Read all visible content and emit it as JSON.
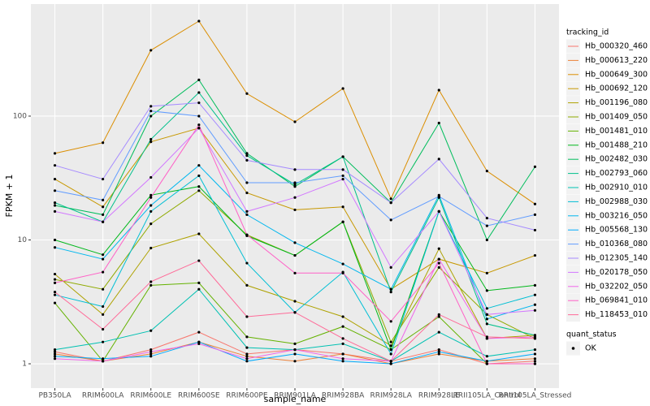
{
  "chart_data": {
    "type": "line",
    "x_label": "sample_name",
    "y_label": "FPKM + 1",
    "log_scale": true,
    "grid": true,
    "ylim": [
      0.636,
      803
    ],
    "yticks": [
      1,
      10,
      100
    ],
    "legend_title": "tracking_id",
    "point_legend": {
      "title": "quant_status",
      "labels": [
        "OK"
      ],
      "color": "#000000"
    },
    "categories": [
      "PB350LA",
      "RRIM600LA",
      "RRIM600LE",
      "RRIM600SE",
      "RRIM600PE",
      "RRIM901LA",
      "RRIM928BA",
      "RRIM928LA",
      "RRIM928LE",
      "RRII105LA_Control",
      "RRII105LA_Stressed"
    ],
    "series": [
      {
        "name": "Hb_000320_460",
        "color": "#F8766D",
        "values": [
          1.25,
          1.05,
          1.3,
          1.8,
          1.2,
          1.3,
          1.2,
          1.05,
          1.3,
          1.0,
          1.05
        ]
      },
      {
        "name": "Hb_000613_220",
        "color": "#EC8239",
        "values": [
          1.2,
          1.05,
          1.2,
          1.5,
          1.15,
          1.05,
          1.2,
          1.0,
          1.2,
          1.05,
          1.1
        ]
      },
      {
        "name": "Hb_000649_300",
        "color": "#DB8E00",
        "values": [
          50,
          61,
          340,
          585,
          152,
          90,
          167,
          21.5,
          162,
          36,
          19.5
        ]
      },
      {
        "name": "Hb_000692_120",
        "color": "#C79800",
        "values": [
          31,
          18.5,
          62,
          80,
          24,
          17.5,
          18.5,
          4,
          7,
          5.4,
          7.5
        ]
      },
      {
        "name": "Hb_001196_080",
        "color": "#AEA200",
        "values": [
          5.3,
          2.5,
          8.6,
          11.2,
          4.3,
          3.2,
          2.4,
          1.4,
          8.5,
          1.6,
          1.7
        ]
      },
      {
        "name": "Hb_001409_050",
        "color": "#8FAA00",
        "values": [
          4.8,
          4.0,
          13.5,
          25,
          11,
          7.5,
          14,
          1.5,
          6,
          2.5,
          1.6
        ]
      },
      {
        "name": "Hb_001481_010",
        "color": "#64B200",
        "values": [
          3.1,
          1.05,
          4.3,
          4.5,
          1.65,
          1.45,
          2.0,
          1.3,
          2.4,
          1.0,
          1.0
        ]
      },
      {
        "name": "Hb_001488_210",
        "color": "#00B81B",
        "values": [
          10,
          7.6,
          23,
          27,
          10.8,
          7.5,
          14,
          1.3,
          17,
          3.9,
          4.3
        ]
      },
      {
        "name": "Hb_002482_030",
        "color": "#00BD5C",
        "values": [
          19,
          16,
          100,
          196,
          50,
          27,
          47,
          20,
          88,
          10,
          39
        ]
      },
      {
        "name": "Hb_002793_060",
        "color": "#00C08B",
        "values": [
          20,
          14,
          65,
          155,
          48,
          28,
          47,
          3.8,
          22,
          2.1,
          1.7
        ]
      },
      {
        "name": "Hb_002910_010",
        "color": "#00C1B2",
        "values": [
          1.3,
          1.5,
          1.85,
          4.0,
          1.35,
          1.3,
          1.45,
          1.05,
          1.8,
          1.15,
          1.3
        ]
      },
      {
        "name": "Hb_002988_030",
        "color": "#00BFD4",
        "values": [
          3.6,
          2.9,
          17,
          33,
          6.5,
          2.6,
          5.5,
          1.2,
          17,
          2.8,
          3.6
        ]
      },
      {
        "name": "Hb_003216_050",
        "color": "#00B7EE",
        "values": [
          8.7,
          7.0,
          19,
          40,
          16,
          9.5,
          6.4,
          4.0,
          23,
          2.3,
          3.0
        ]
      },
      {
        "name": "Hb_005568_130",
        "color": "#00ABFD",
        "values": [
          1.15,
          1.1,
          1.15,
          1.5,
          1.05,
          1.2,
          1.05,
          1.0,
          1.25,
          1.05,
          1.2
        ]
      },
      {
        "name": "Hb_010368_080",
        "color": "#619CFF",
        "values": [
          25,
          21,
          110,
          100,
          29,
          29,
          33,
          14.5,
          22.5,
          13,
          16
        ]
      },
      {
        "name": "Hb_012305_140",
        "color": "#A58AFF",
        "values": [
          40,
          31,
          120,
          128,
          44,
          37,
          37,
          20,
          45,
          15,
          12
        ]
      },
      {
        "name": "Hb_020178_050",
        "color": "#D277FF",
        "values": [
          17,
          14,
          32,
          80,
          17,
          22,
          31,
          6,
          17,
          2.5,
          2.7
        ]
      },
      {
        "name": "Hb_032202_050",
        "color": "#F066EA",
        "values": [
          1.1,
          1.05,
          1.25,
          1.45,
          1.1,
          1.3,
          1.1,
          1.05,
          7,
          1.6,
          1.65
        ]
      },
      {
        "name": "Hb_069841_010",
        "color": "#FF61C7",
        "values": [
          4.5,
          5.5,
          22,
          85,
          11,
          5.4,
          5.4,
          2.2,
          6.5,
          1.0,
          1.0
        ]
      },
      {
        "name": "Hb_118453_010",
        "color": "#FF6A98",
        "values": [
          3.8,
          1.9,
          4.6,
          6.8,
          2.4,
          2.6,
          1.6,
          1.05,
          2.5,
          1.65,
          1.6
        ]
      }
    ]
  }
}
